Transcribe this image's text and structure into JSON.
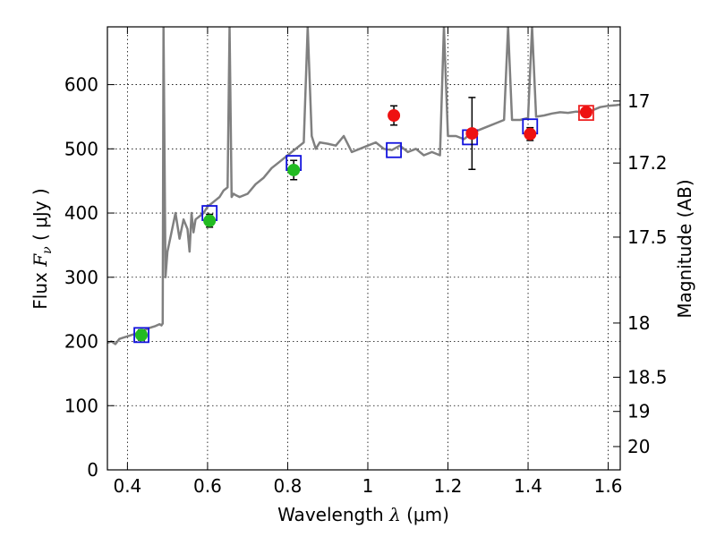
{
  "chart_data": {
    "type": "scatter",
    "xlabel": "Wavelength  λ (μm)",
    "ylabel": "Flux  F_ν  ( μJy )",
    "ylabel_parts": {
      "pre": "Flux  ",
      "var": "F",
      "sub": "ν",
      "post": "  ( μJy )"
    },
    "xlabel_parts": {
      "pre": "Wavelength  ",
      "var": "λ",
      "post": " (μm)"
    },
    "y2label": "Magnitude (AB)",
    "xlim": [
      0.35,
      1.63
    ],
    "ylim": [
      0,
      690
    ],
    "grid": true,
    "x_ticks": [
      {
        "value": 0.4,
        "label": "0.4"
      },
      {
        "value": 0.6,
        "label": "0.6"
      },
      {
        "value": 0.8,
        "label": "0.8"
      },
      {
        "value": 1.0,
        "label": "1"
      },
      {
        "value": 1.2,
        "label": "1.2"
      },
      {
        "value": 1.4,
        "label": "1.4"
      },
      {
        "value": 1.6,
        "label": "1.6"
      }
    ],
    "y_ticks": [
      {
        "value": 0,
        "label": "0"
      },
      {
        "value": 100,
        "label": "100"
      },
      {
        "value": 200,
        "label": "200"
      },
      {
        "value": 300,
        "label": "300"
      },
      {
        "value": 400,
        "label": "400"
      },
      {
        "value": 500,
        "label": "500"
      },
      {
        "value": 600,
        "label": "600"
      }
    ],
    "mag_ticks": [
      {
        "label": "17",
        "flux": 574.5
      },
      {
        "label": "17.2",
        "flux": 477.9
      },
      {
        "label": "17.5",
        "flux": 362.5
      },
      {
        "label": "18",
        "flux": 228.7
      },
      {
        "label": "18.5",
        "flux": 144.3
      },
      {
        "label": "19",
        "flux": 91.0
      },
      {
        "label": "20",
        "flux": 36.3
      }
    ],
    "colors": {
      "spectrum": "#808080",
      "optical_points": "#22bb22",
      "nir_points": "#ee1111",
      "model_boxes": "#1111dd",
      "model_box_last": "#ee2222",
      "grid": "#000000"
    },
    "series": [
      {
        "name": "",
        "kind": "spectrum",
        "x": [
          0.35,
          0.36,
          0.37,
          0.38,
          0.39,
          0.4,
          0.41,
          0.42,
          0.43,
          0.44,
          0.45,
          0.46,
          0.47,
          0.48,
          0.485,
          0.488,
          0.49,
          0.495,
          0.5,
          0.51,
          0.52,
          0.53,
          0.54,
          0.55,
          0.555,
          0.56,
          0.565,
          0.57,
          0.58,
          0.59,
          0.6,
          0.61,
          0.62,
          0.63,
          0.64,
          0.65,
          0.655,
          0.66,
          0.665,
          0.67,
          0.68,
          0.7,
          0.72,
          0.74,
          0.76,
          0.78,
          0.8,
          0.82,
          0.84,
          0.85,
          0.86,
          0.87,
          0.88,
          0.9,
          0.92,
          0.94,
          0.96,
          0.98,
          1.0,
          1.02,
          1.04,
          1.06,
          1.08,
          1.1,
          1.12,
          1.14,
          1.16,
          1.18,
          1.19,
          1.2,
          1.22,
          1.24,
          1.26,
          1.28,
          1.3,
          1.32,
          1.34,
          1.35,
          1.36,
          1.38,
          1.4,
          1.41,
          1.42,
          1.44,
          1.46,
          1.48,
          1.5,
          1.52,
          1.54,
          1.56,
          1.58,
          1.6,
          1.62,
          1.63
        ],
        "y": [
          198,
          200,
          196,
          204,
          206,
          208,
          210,
          212,
          214,
          216,
          220,
          222,
          224,
          227,
          225,
          228,
          690,
          300,
          340,
          370,
          400,
          360,
          390,
          375,
          340,
          400,
          370,
          390,
          395,
          400,
          410,
          415,
          420,
          425,
          435,
          440,
          690,
          425,
          430,
          428,
          425,
          430,
          445,
          455,
          470,
          480,
          490,
          500,
          510,
          690,
          520,
          500,
          510,
          508,
          505,
          520,
          495,
          500,
          505,
          510,
          500,
          498,
          505,
          495,
          500,
          490,
          495,
          490,
          690,
          520,
          520,
          515,
          525,
          530,
          535,
          540,
          545,
          690,
          545,
          545,
          548,
          690,
          550,
          552,
          555,
          557,
          556,
          558,
          557,
          560,
          565,
          567,
          568,
          569
        ]
      }
    ],
    "observed_optical": {
      "x": [
        0.435,
        0.605,
        0.815
      ],
      "y": [
        210,
        388,
        467
      ],
      "err": [
        8,
        10,
        15
      ]
    },
    "observed_nir": {
      "x": [
        1.065,
        1.26,
        1.405,
        1.545
      ],
      "y": [
        552,
        524,
        523,
        557
      ],
      "err": [
        15,
        56,
        10,
        0
      ]
    },
    "model_photometry": {
      "x": [
        0.435,
        0.605,
        0.815,
        1.065,
        1.255,
        1.405,
        1.545
      ],
      "y": [
        210,
        400,
        478,
        498,
        518,
        535,
        556
      ]
    }
  }
}
